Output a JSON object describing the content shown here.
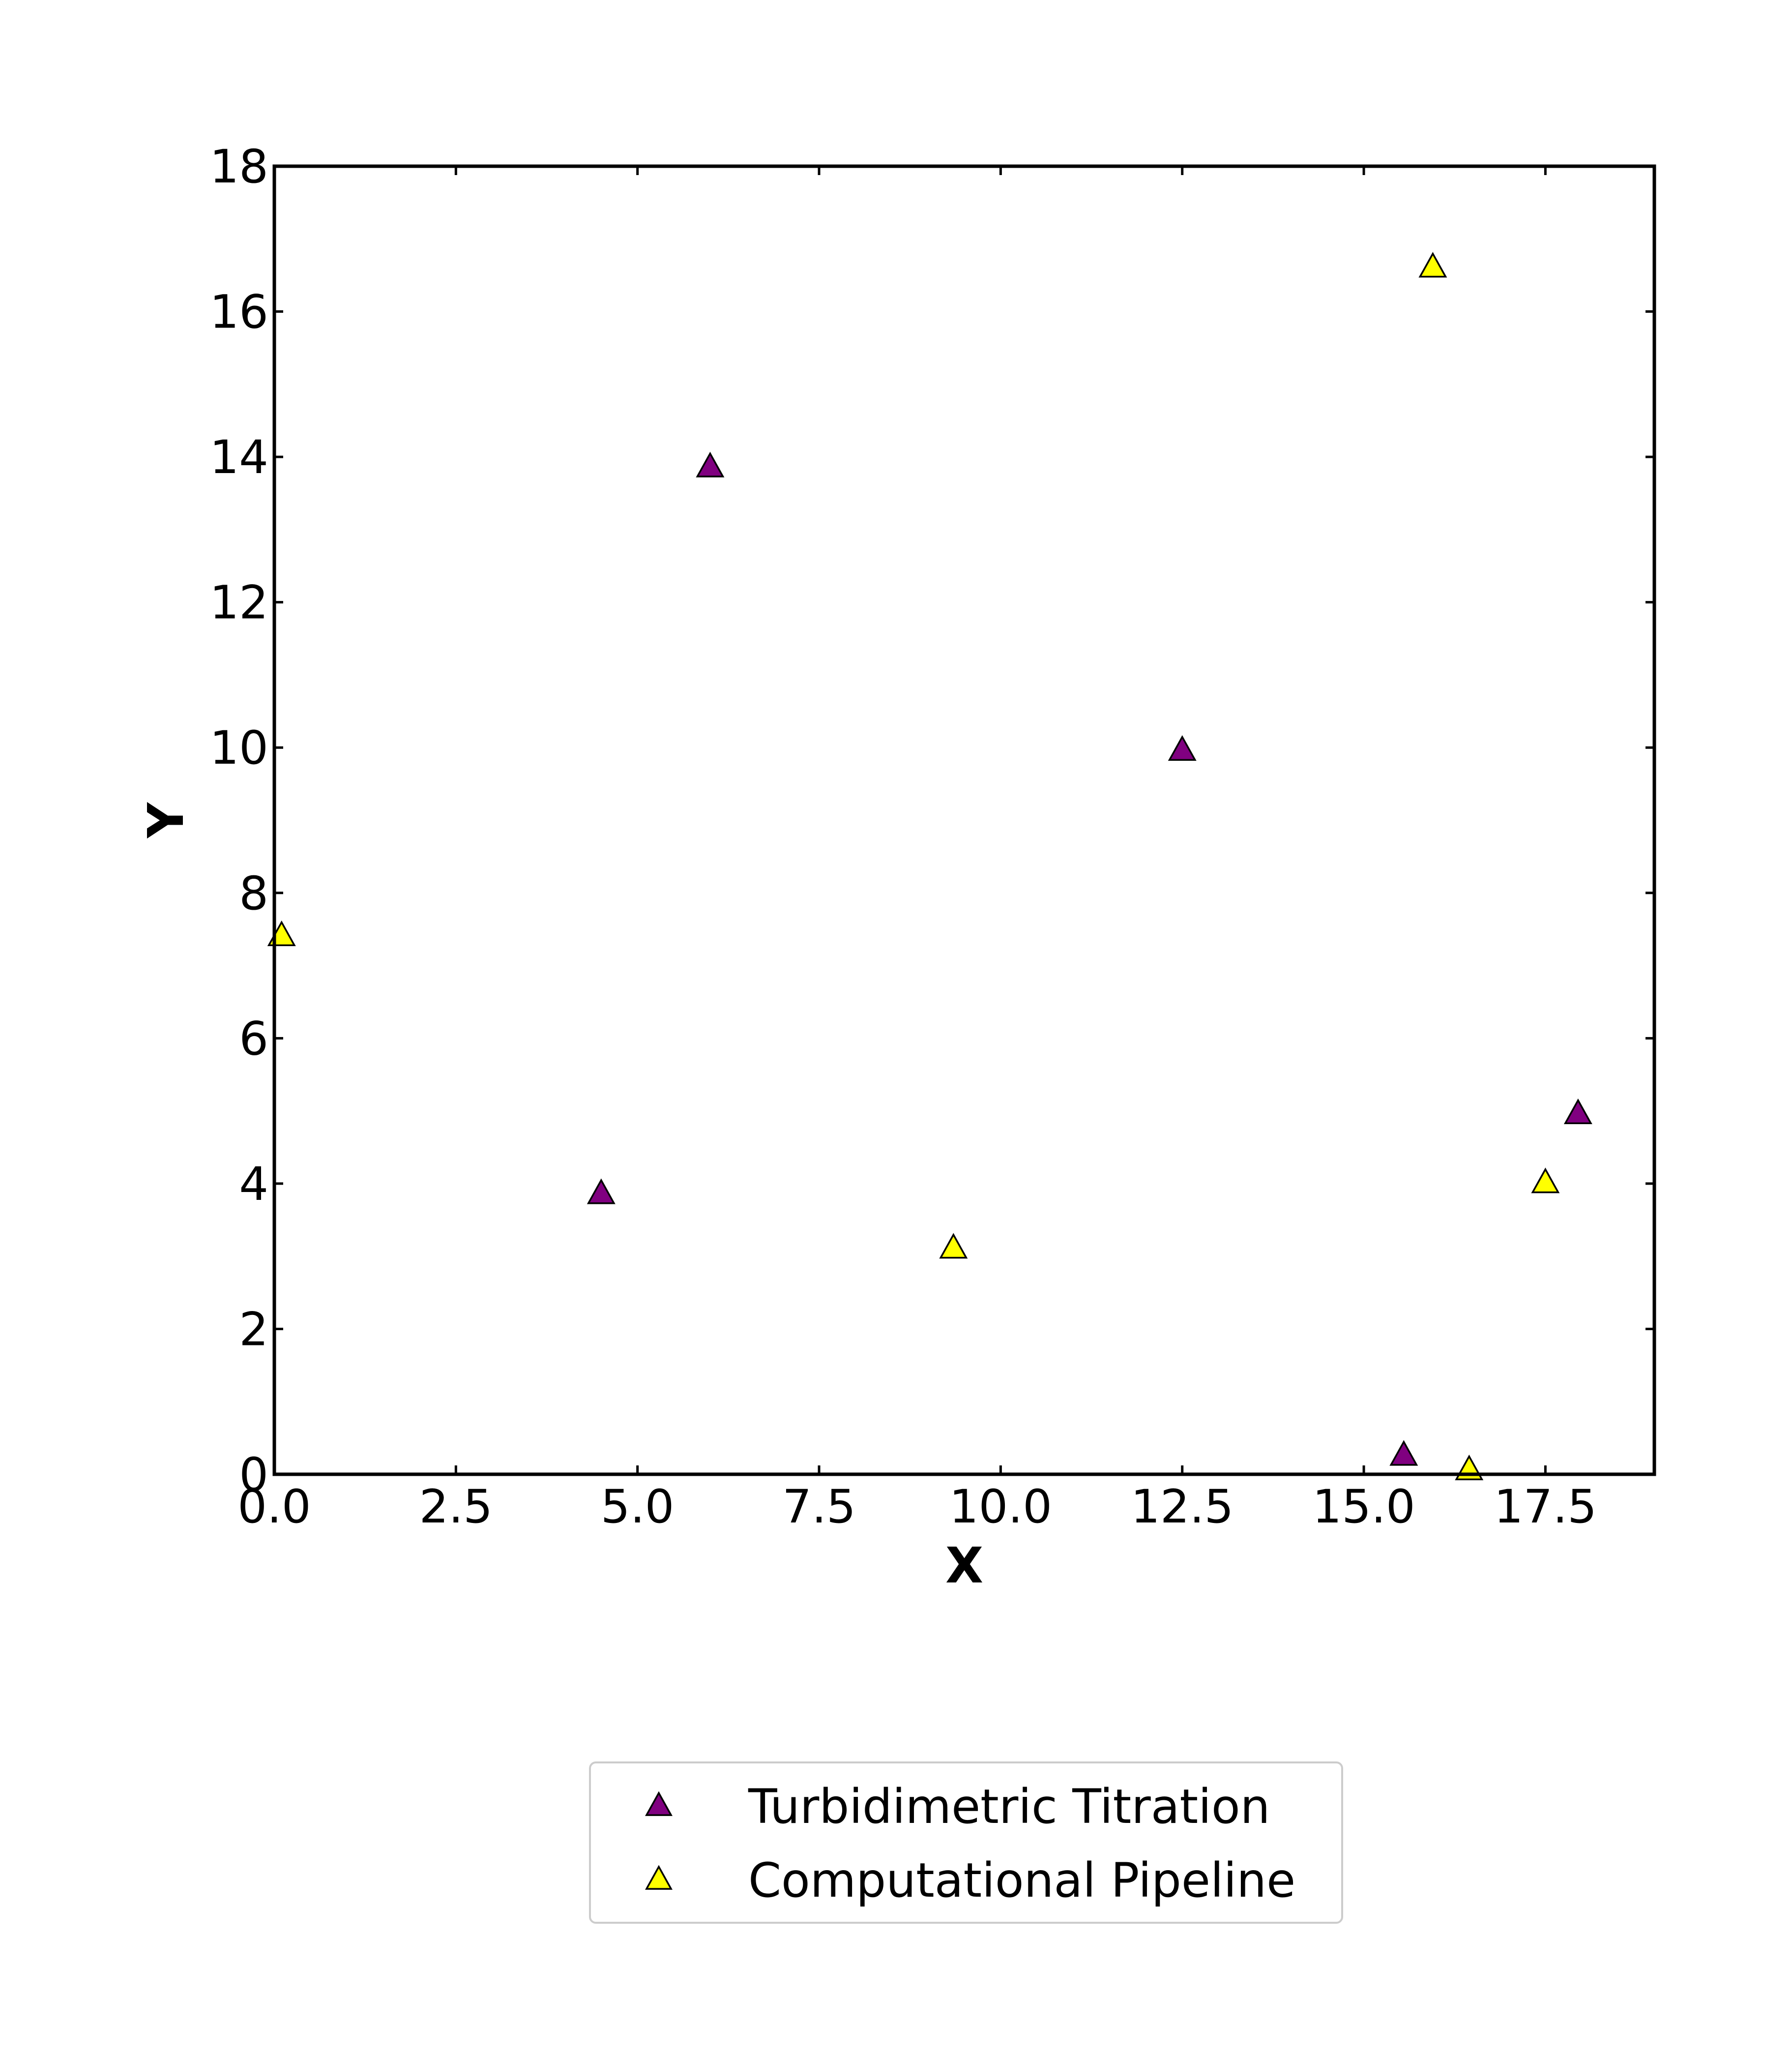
{
  "chart_data": {
    "type": "scatter",
    "xlabel": "X",
    "ylabel": "Y",
    "xlim": [
      0,
      19
    ],
    "ylim": [
      0,
      18
    ],
    "xticks": [
      "0.0",
      "2.5",
      "5.0",
      "7.5",
      "10.0",
      "12.5",
      "15.0",
      "17.5"
    ],
    "yticks": [
      "0",
      "2",
      "4",
      "6",
      "8",
      "10",
      "12",
      "14",
      "16",
      "18"
    ],
    "legend_position": "bottom-center",
    "marker": "triangle",
    "series": [
      {
        "name": "Turbidimetric Titration",
        "color": "#800080",
        "points": [
          {
            "x": 6.0,
            "y": 13.85
          },
          {
            "x": 4.5,
            "y": 3.85
          },
          {
            "x": 12.5,
            "y": 9.95
          },
          {
            "x": 15.55,
            "y": 0.25
          },
          {
            "x": 17.95,
            "y": 4.95
          }
        ]
      },
      {
        "name": "Computational Pipeline",
        "color": "#ffff00",
        "points": [
          {
            "x": 0.1,
            "y": 7.4
          },
          {
            "x": 9.35,
            "y": 3.1
          },
          {
            "x": 15.95,
            "y": 16.6
          },
          {
            "x": 16.45,
            "y": 0.05
          },
          {
            "x": 17.5,
            "y": 4.0
          }
        ]
      }
    ]
  }
}
